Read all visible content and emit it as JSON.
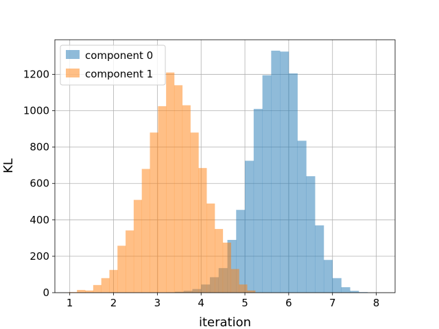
{
  "chart_data": {
    "type": "bar",
    "histogram": true,
    "xlabel": "iteration",
    "ylabel": "KL",
    "xlim": [
      0.66,
      8.43
    ],
    "ylim": [
      0,
      1390
    ],
    "xticks": [
      1,
      2,
      3,
      4,
      5,
      6,
      7,
      8
    ],
    "yticks": [
      0,
      200,
      400,
      600,
      800,
      1000,
      1200
    ],
    "grid": true,
    "legend": "top-left",
    "series": [
      {
        "name": "component 0",
        "color": "#1f77b4",
        "opacity": 0.5,
        "bin_start": 3.2,
        "bin_width": 0.2,
        "values": [
          2,
          5,
          10,
          20,
          45,
          85,
          135,
          290,
          455,
          725,
          1010,
          1195,
          1330,
          1325,
          1205,
          835,
          640,
          370,
          180,
          80,
          30,
          10,
          3
        ]
      },
      {
        "name": "component 1",
        "color": "#ff7f0e",
        "opacity": 0.5,
        "bin_start": 0.98,
        "bin_width": 0.185,
        "values": [
          3,
          15,
          12,
          42,
          80,
          125,
          258,
          342,
          510,
          680,
          880,
          1025,
          1210,
          1140,
          1030,
          880,
          685,
          490,
          350,
          275,
          130,
          45,
          12
        ]
      }
    ]
  }
}
